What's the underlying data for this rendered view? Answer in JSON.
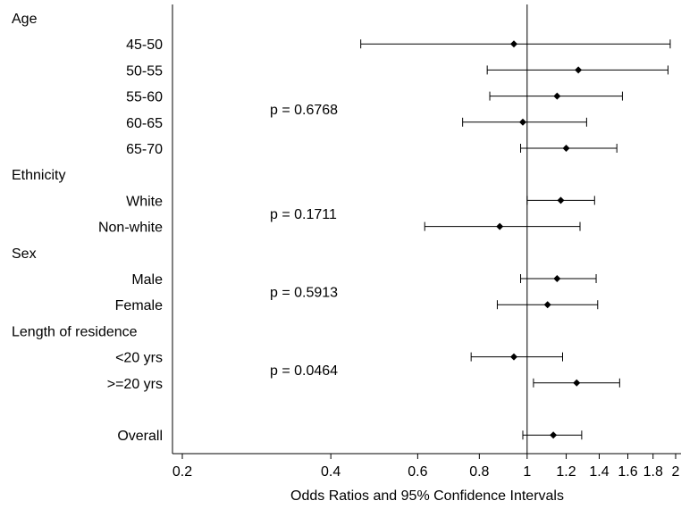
{
  "chart_data": {
    "type": "forest",
    "title": "",
    "xlabel": "Odds Ratios and 95% Confidence Intervals",
    "ylabel": "",
    "x_scale": "log",
    "xlim": [
      0.2,
      2
    ],
    "x_ticks": [
      {
        "value": 0.2,
        "label": "0.2"
      },
      {
        "value": 0.4,
        "label": "0.4"
      },
      {
        "value": 0.6,
        "label": "0.6"
      },
      {
        "value": 0.8,
        "label": "0.8"
      },
      {
        "value": 1.0,
        "label": "1"
      },
      {
        "value": 1.2,
        "label": "1.2"
      },
      {
        "value": 1.4,
        "label": "1.4"
      },
      {
        "value": 1.6,
        "label": "1.6"
      },
      {
        "value": 1.8,
        "label": "1.8"
      },
      {
        "value": 2.0,
        "label": "2"
      }
    ],
    "reference_line": 1,
    "grid": false,
    "groups": [
      {
        "label": "Age",
        "p_value": "p = 0.6768",
        "rows": [
          {
            "label": "45-50",
            "or": 0.94,
            "lower": 0.46,
            "upper": 1.95
          },
          {
            "label": "50-55",
            "or": 1.27,
            "lower": 0.83,
            "upper": 1.93
          },
          {
            "label": "55-60",
            "or": 1.15,
            "lower": 0.84,
            "upper": 1.56
          },
          {
            "label": "60-65",
            "or": 0.98,
            "lower": 0.74,
            "upper": 1.32
          },
          {
            "label": "65-70",
            "or": 1.2,
            "lower": 0.97,
            "upper": 1.52
          }
        ]
      },
      {
        "label": "Ethnicity",
        "p_value": "p = 0.1711",
        "rows": [
          {
            "label": "White",
            "or": 1.17,
            "lower": 1.0,
            "upper": 1.37
          },
          {
            "label": "Non-white",
            "or": 0.88,
            "lower": 0.62,
            "upper": 1.28
          }
        ]
      },
      {
        "label": "Sex",
        "p_value": "p = 0.5913",
        "rows": [
          {
            "label": "Male",
            "or": 1.15,
            "lower": 0.97,
            "upper": 1.38
          },
          {
            "label": "Female",
            "or": 1.1,
            "lower": 0.87,
            "upper": 1.39
          }
        ]
      },
      {
        "label": "Length of residence",
        "p_value": "p = 0.0464",
        "rows": [
          {
            "label": "<20 yrs",
            "or": 0.94,
            "lower": 0.77,
            "upper": 1.18
          },
          {
            "label": ">=20 yrs",
            "or": 1.26,
            "lower": 1.03,
            "upper": 1.54
          }
        ]
      }
    ],
    "overall": {
      "label": "Overall",
      "or": 1.13,
      "lower": 0.98,
      "upper": 1.29
    }
  }
}
